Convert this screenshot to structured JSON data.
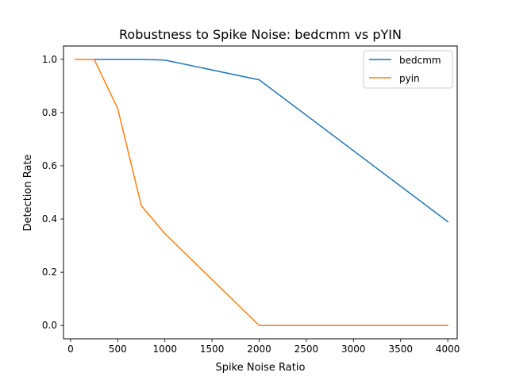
{
  "chart_data": {
    "type": "line",
    "title": "Robustness to Spike Noise: bedcmm vs pYIN",
    "xlabel": "Spike Noise Ratio",
    "ylabel": "Detection Rate",
    "xlim": [
      -75,
      4100
    ],
    "ylim": [
      -0.05,
      1.05
    ],
    "xticks": [
      0,
      500,
      1000,
      1500,
      2000,
      2500,
      3000,
      3500,
      4000
    ],
    "xtick_labels": [
      "0",
      "500",
      "1000",
      "1500",
      "2000",
      "2500",
      "3000",
      "3500",
      "4000"
    ],
    "yticks": [
      0.0,
      0.2,
      0.4,
      0.6,
      0.8,
      1.0
    ],
    "ytick_labels": [
      "0.0",
      "0.2",
      "0.4",
      "0.6",
      "0.8",
      "1.0"
    ],
    "grid": false,
    "legend_position": "upper right",
    "series": [
      {
        "name": "bedcmm",
        "color": "#1f77b4",
        "x": [
          50,
          250,
          500,
          750,
          1000,
          2000,
          4000
        ],
        "y": [
          1.0,
          1.0,
          1.0,
          1.0,
          0.997,
          0.923,
          0.39
        ]
      },
      {
        "name": "pyin",
        "color": "#ff7f0e",
        "x": [
          50,
          250,
          500,
          750,
          1000,
          2000,
          4000
        ],
        "y": [
          1.0,
          1.0,
          0.815,
          0.45,
          0.345,
          0.0,
          0.0
        ]
      }
    ]
  }
}
